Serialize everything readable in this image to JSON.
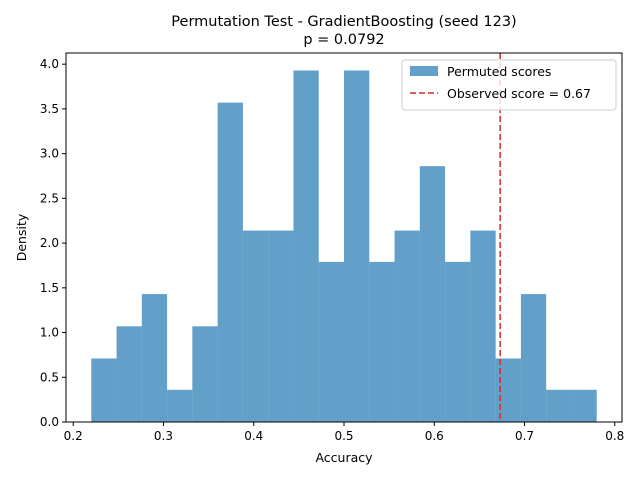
{
  "chart_data": {
    "type": "bar",
    "title": "Permutation Test - GradientBoosting (seed 123)",
    "subtitle": "p = 0.0792",
    "xlabel": "Accuracy",
    "ylabel": "Density",
    "xlim": [
      0.192,
      0.808
    ],
    "ylim": [
      0.0,
      4.125
    ],
    "xticks": [
      "0.2",
      "0.3",
      "0.4",
      "0.5",
      "0.6",
      "0.7",
      "0.8"
    ],
    "yticks": [
      "0.0",
      "0.5",
      "1.0",
      "1.5",
      "2.0",
      "2.5",
      "3.0",
      "3.5",
      "4.0"
    ],
    "bin_edges": [
      0.22,
      0.248,
      0.276,
      0.304,
      0.332,
      0.36,
      0.388,
      0.416,
      0.444,
      0.472,
      0.5,
      0.528,
      0.556,
      0.584,
      0.612,
      0.64,
      0.668,
      0.696,
      0.724,
      0.752,
      0.78
    ],
    "series": [
      {
        "name": "Permuted scores",
        "color": "#1f77b4",
        "values": [
          0.71,
          1.07,
          1.43,
          0.36,
          1.07,
          3.57,
          2.14,
          2.14,
          3.93,
          1.79,
          3.93,
          1.79,
          2.14,
          2.86,
          1.79,
          2.14,
          0.71,
          1.43,
          0.36,
          0.36
        ]
      }
    ],
    "observed": {
      "label": "Observed score = 0.67",
      "value": 0.673,
      "color": "#d62728"
    },
    "legend_position": "top-right",
    "grid": false
  }
}
